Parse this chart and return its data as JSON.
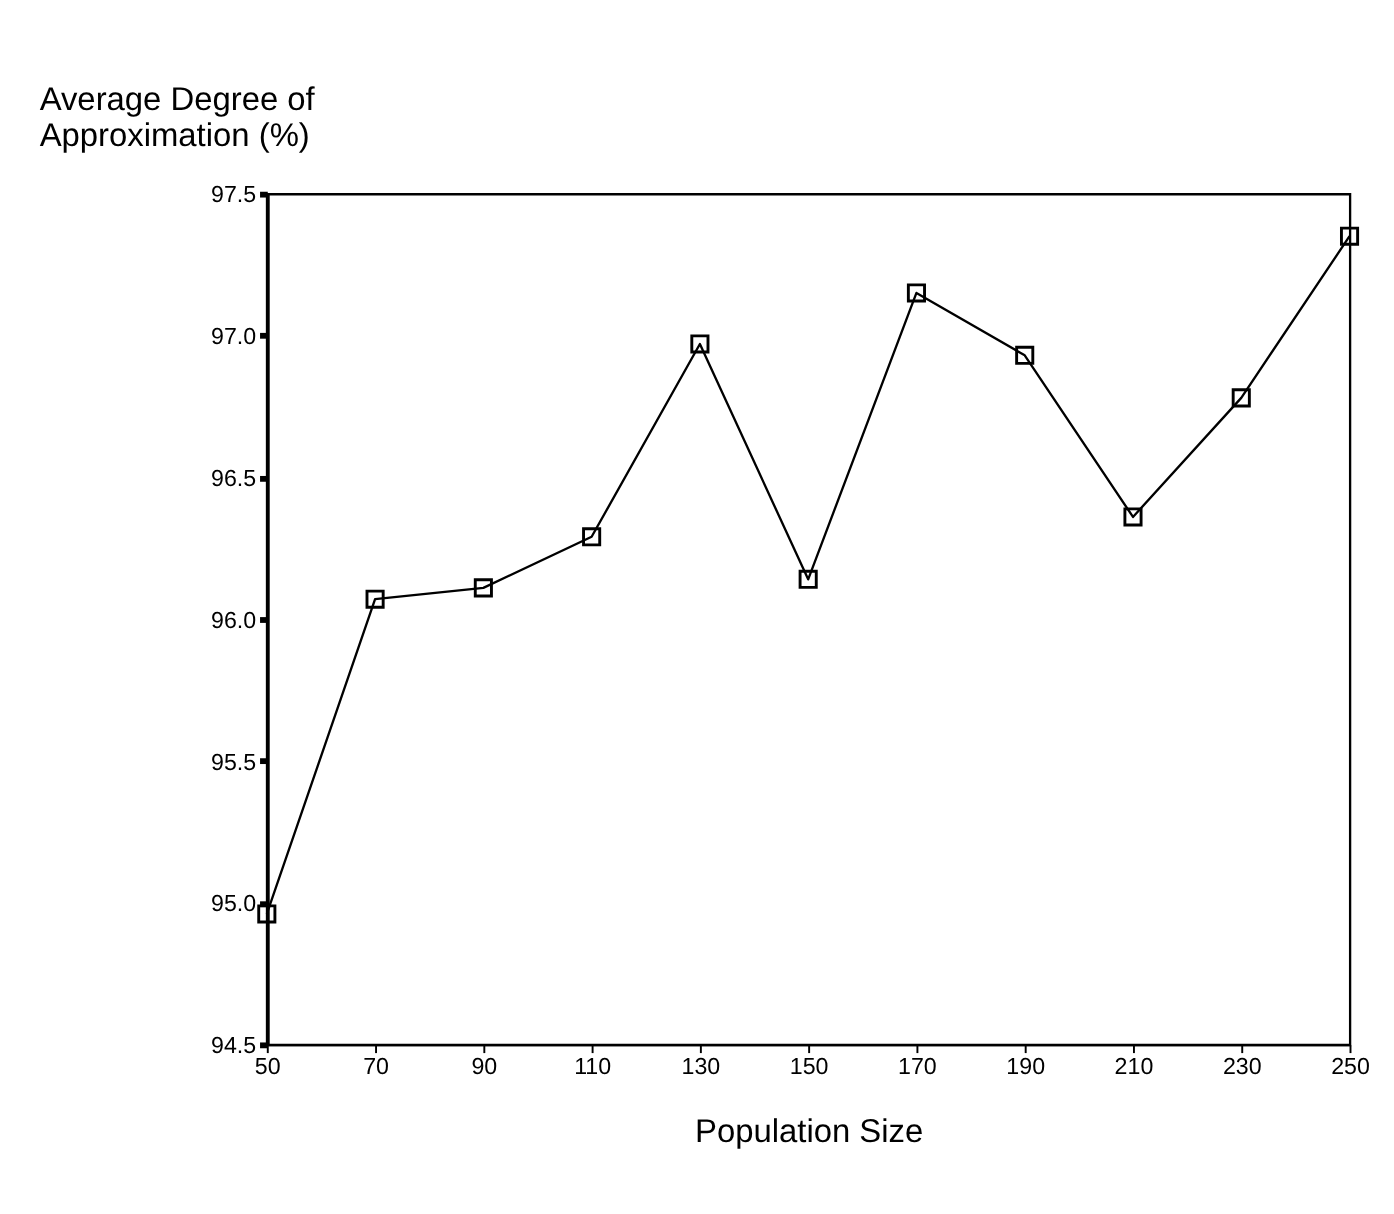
{
  "chart_data": {
    "type": "line",
    "xlabel": "Population Size",
    "ylabel": "Average Degree of Approximation (%)",
    "x": [
      50,
      70,
      90,
      110,
      130,
      150,
      170,
      190,
      210,
      230,
      250
    ],
    "series": [
      {
        "color": "#000000",
        "values": [
          94.96,
          96.07,
          96.11,
          96.29,
          96.97,
          96.14,
          97.15,
          96.93,
          96.36,
          96.78,
          97.35
        ]
      }
    ],
    "xlim": [
      50,
      250
    ],
    "xticks": [
      50,
      70,
      90,
      110,
      130,
      150,
      170,
      190,
      210,
      230,
      250
    ],
    "ylim": [
      94.5,
      97.5
    ],
    "yticks": [
      {
        "value": 94.5,
        "label": "94.5"
      },
      {
        "value": 95.0,
        "label": "95.0"
      },
      {
        "value": 95.5,
        "label": "95.5"
      },
      {
        "value": 96.0,
        "label": "96.0"
      },
      {
        "value": 96.5,
        "label": "96.5"
      },
      {
        "value": 97.0,
        "label": "97.0"
      },
      {
        "value": 97.5,
        "label": "97.5"
      }
    ],
    "marker": "square",
    "line_style": "solid",
    "grid": false
  }
}
